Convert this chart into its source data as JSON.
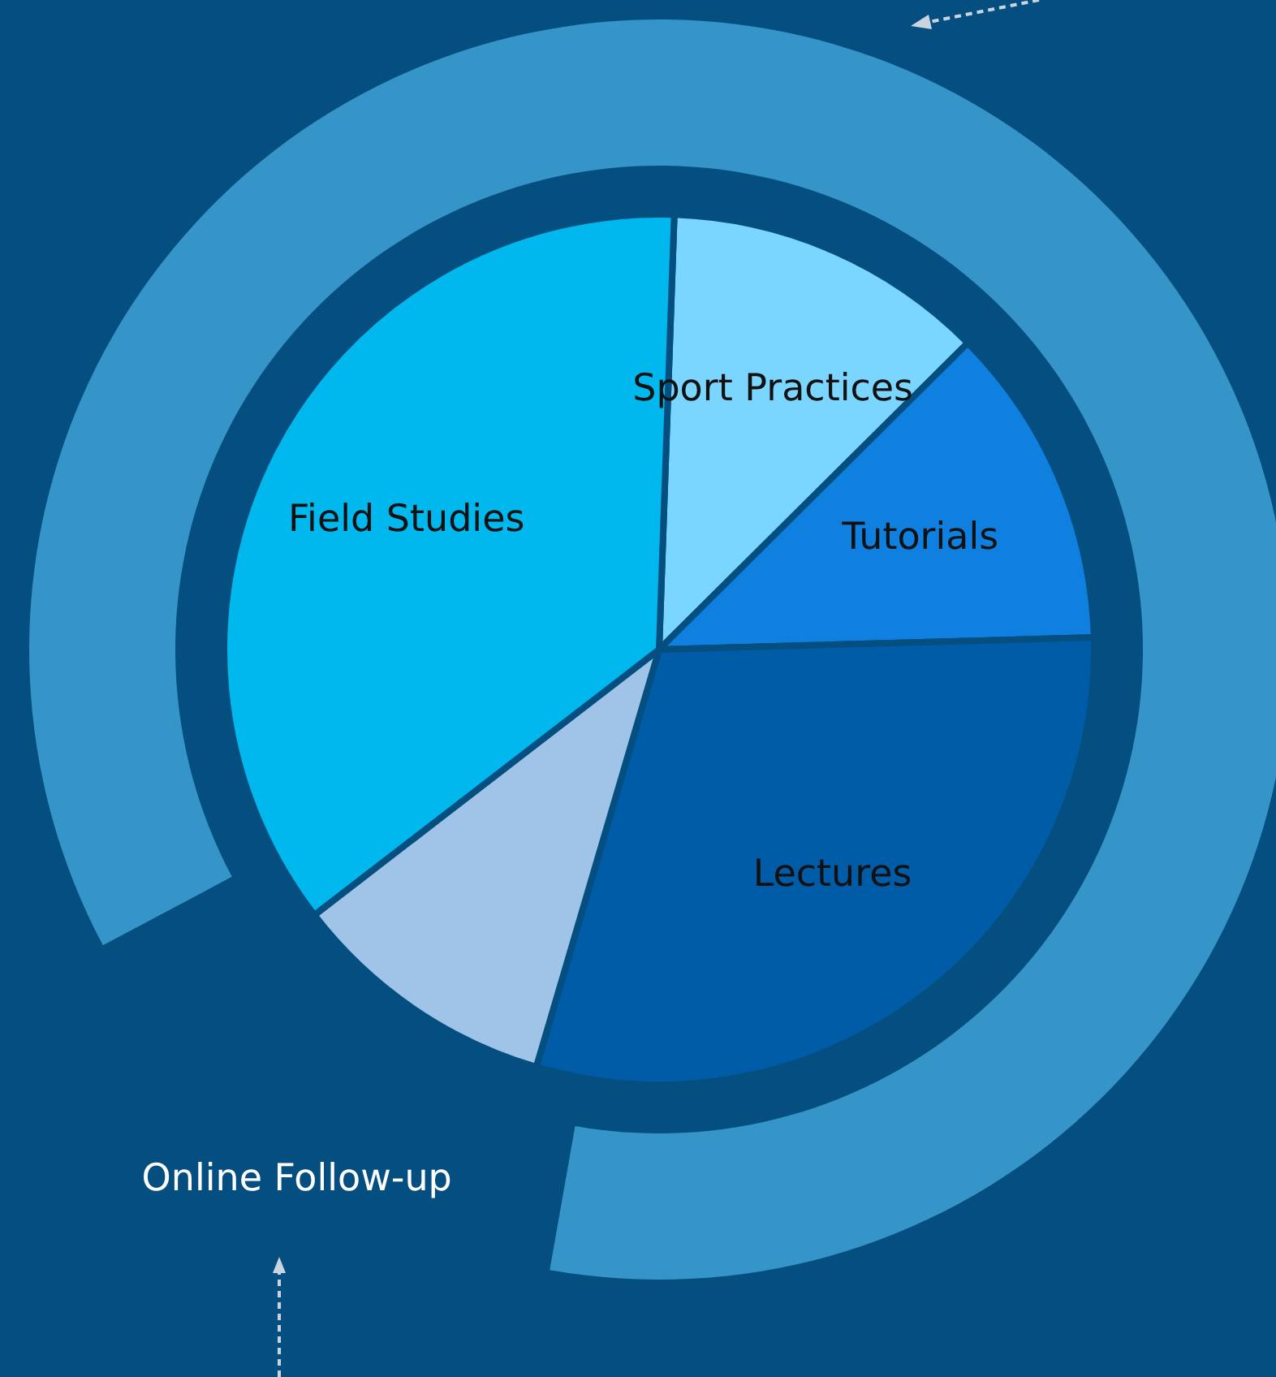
{
  "chart_data": {
    "type": "pie",
    "categories": [
      "Sport Practices",
      "Tutorials",
      "Lectures",
      "Online Follow-up",
      "Field Studies"
    ],
    "values": [
      12,
      12,
      30,
      10,
      36
    ],
    "colors": [
      "#7ad5ff",
      "#1080e0",
      "#005ca6",
      "#a0c4e8",
      "#00b8ee"
    ]
  }
}
